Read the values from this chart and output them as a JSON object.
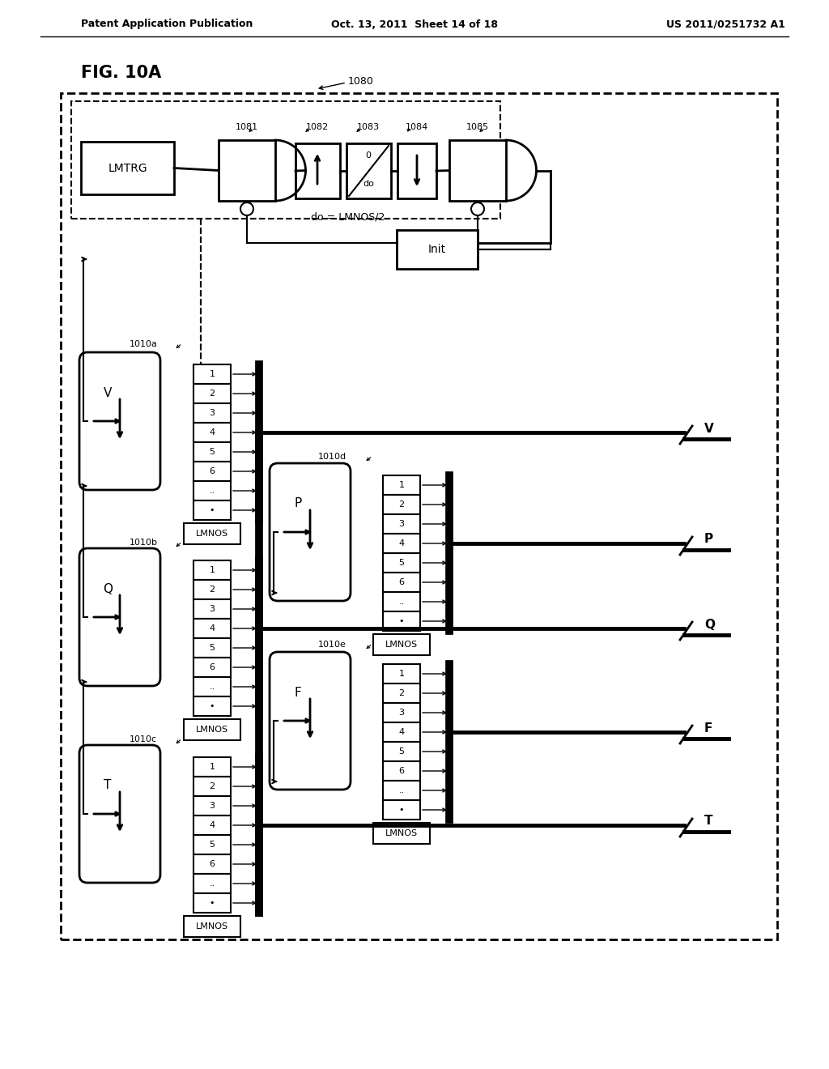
{
  "bg_color": "#ffffff",
  "header_left": "Patent Application Publication",
  "header_mid": "Oct. 13, 2011  Sheet 14 of 18",
  "header_right": "US 2011/0251732 A1",
  "fig_label": "FIG. 10A",
  "top_box_label": "1080",
  "lmtrg_label": "LMTRG",
  "label_1081": "1081",
  "label_1082": "1082",
  "label_1083": "1083",
  "label_1084": "1084",
  "label_1085": "1085",
  "do_eq": "do = LMNOS/2",
  "init_label": "Init",
  "lmnos_label": "LMNOS",
  "row_labels": [
    "1",
    "2",
    "3",
    "4",
    "5",
    "6",
    "..",
    "•"
  ],
  "output_labels": [
    "V",
    "P",
    "Q",
    "F",
    "T"
  ],
  "module_labels": [
    "1010a",
    "1010b",
    "1010c",
    "1010d",
    "1010e"
  ],
  "var_labels": [
    "V",
    "Q",
    "T",
    "P",
    "F"
  ]
}
